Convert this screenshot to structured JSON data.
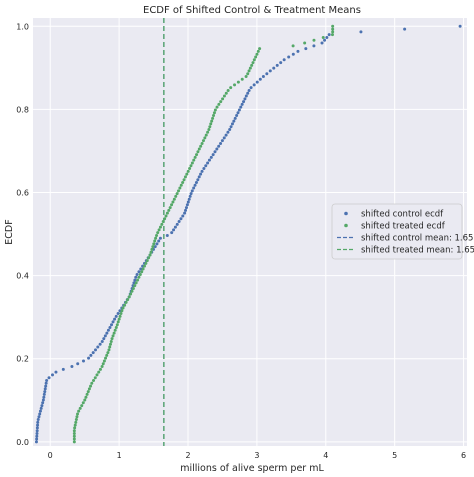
{
  "chart_data": {
    "type": "scatter",
    "title": "ECDF of Shifted Control & Treatment Means",
    "xlabel": "millions of alive sperm per mL",
    "ylabel": "ECDF",
    "xlim": [
      -0.25,
      6.05
    ],
    "ylim": [
      -0.01,
      1.02
    ],
    "x_ticks": [
      0,
      1,
      2,
      3,
      4,
      5,
      6
    ],
    "x_tick_labels": [
      "0",
      "1",
      "2",
      "3",
      "4",
      "5",
      "6"
    ],
    "y_ticks": [
      0.0,
      0.2,
      0.4,
      0.6,
      0.8,
      1.0
    ],
    "y_tick_labels": [
      "0.0",
      "0.2",
      "0.4",
      "0.6",
      "0.8",
      "1.0"
    ],
    "grid": true,
    "background": "#eaeaf2",
    "legend_position": "center-right",
    "series": [
      {
        "name": "shifted control ecdf",
        "color": "#4c72b0",
        "marker": "dot",
        "knots": [
          [
            -0.2,
            0.0
          ],
          [
            -0.18,
            0.05
          ],
          [
            -0.1,
            0.1
          ],
          [
            -0.05,
            0.15
          ],
          [
            0.1,
            0.17
          ],
          [
            0.3,
            0.18
          ],
          [
            0.55,
            0.2
          ],
          [
            0.75,
            0.24
          ],
          [
            0.95,
            0.3
          ],
          [
            1.15,
            0.35
          ],
          [
            1.25,
            0.4
          ],
          [
            1.45,
            0.45
          ],
          [
            1.6,
            0.49
          ],
          [
            1.75,
            0.5
          ],
          [
            1.95,
            0.55
          ],
          [
            2.05,
            0.6
          ],
          [
            2.2,
            0.65
          ],
          [
            2.4,
            0.7
          ],
          [
            2.6,
            0.75
          ],
          [
            2.75,
            0.8
          ],
          [
            2.9,
            0.85
          ],
          [
            3.1,
            0.88
          ],
          [
            3.4,
            0.92
          ],
          [
            3.6,
            0.94
          ],
          [
            3.95,
            0.96
          ],
          [
            4.05,
            0.98
          ],
          [
            4.75,
            0.99
          ],
          [
            5.95,
            1.0
          ]
        ]
      },
      {
        "name": "shifted treated ecdf",
        "color": "#55a868",
        "marker": "dot",
        "knots": [
          [
            0.35,
            0.0
          ],
          [
            0.35,
            0.03
          ],
          [
            0.4,
            0.07
          ],
          [
            0.5,
            0.1
          ],
          [
            0.6,
            0.14
          ],
          [
            0.75,
            0.18
          ],
          [
            0.85,
            0.22
          ],
          [
            0.9,
            0.25
          ],
          [
            0.97,
            0.28
          ],
          [
            1.05,
            0.32
          ],
          [
            1.15,
            0.35
          ],
          [
            1.3,
            0.4
          ],
          [
            1.45,
            0.45
          ],
          [
            1.55,
            0.5
          ],
          [
            1.7,
            0.55
          ],
          [
            1.85,
            0.6
          ],
          [
            2.0,
            0.65
          ],
          [
            2.15,
            0.7
          ],
          [
            2.3,
            0.75
          ],
          [
            2.4,
            0.8
          ],
          [
            2.6,
            0.85
          ],
          [
            2.85,
            0.88
          ],
          [
            3.05,
            0.95
          ],
          [
            3.45,
            0.95
          ],
          [
            3.7,
            0.96
          ],
          [
            3.9,
            0.97
          ],
          [
            4.1,
            0.98
          ]
        ]
      },
      {
        "name": "shifted control mean: 1.65",
        "color": "#4c72b0",
        "line_style": "dashed",
        "x": 1.65
      },
      {
        "name": "shifted treated mean: 1.65",
        "color": "#55a868",
        "line_style": "dashed",
        "x": 1.65
      }
    ]
  }
}
